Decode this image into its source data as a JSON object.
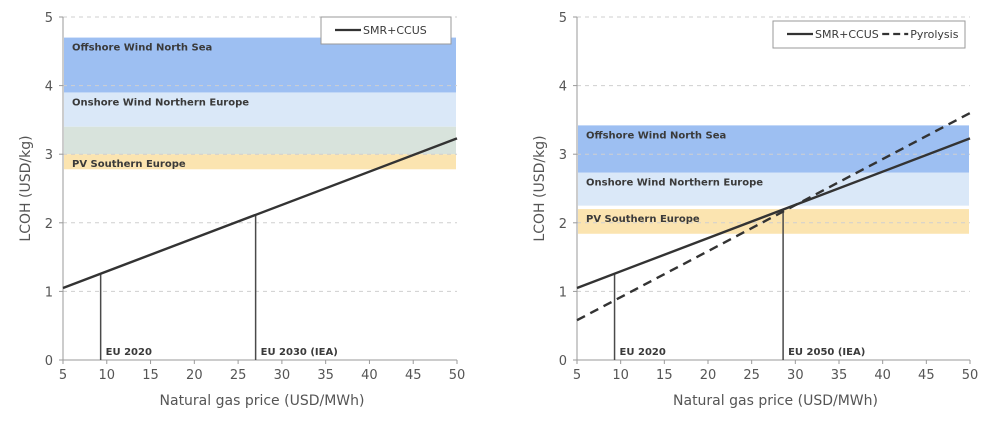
{
  "chart_data": [
    {
      "type": "line",
      "x_axis": {
        "label": "Natural gas price (USD/MWh)",
        "range": [
          5,
          50
        ],
        "ticks": [
          5,
          10,
          15,
          20,
          25,
          30,
          35,
          40,
          45,
          50
        ]
      },
      "y_axis": {
        "label": "LCOH (USD/kg)",
        "range": [
          0,
          5
        ],
        "ticks": [
          0,
          1,
          2,
          3,
          4,
          5
        ]
      },
      "grid": "horizontal dashed",
      "legend_placement": "top-right",
      "series": [
        {
          "name": "SMR+CCUS",
          "style": "solid",
          "color": "#333333",
          "points": [
            [
              5,
              1.05
            ],
            [
              50,
              3.23
            ]
          ]
        }
      ],
      "bands": [
        {
          "label": "Offshore Wind North Sea",
          "y_range": [
            3.9,
            4.7
          ],
          "color": "#9dbff2"
        },
        {
          "label": "Onshore Wind Northern Europe",
          "y_range": [
            3.4,
            3.9
          ],
          "color": "#dae8f8"
        },
        {
          "label": "",
          "y_range": [
            3.0,
            3.4
          ],
          "color": "#d8e3dc"
        },
        {
          "label": "PV Southern Europe",
          "y_range": [
            2.78,
            3.0
          ],
          "color": "#fbe4b0"
        }
      ],
      "markers": [
        {
          "label": "EU 2020",
          "x": 9.3,
          "y": 1.26
        },
        {
          "label": "EU 2030 (IEA)",
          "x": 27,
          "y": 2.12
        }
      ]
    },
    {
      "type": "line",
      "x_axis": {
        "label": "Natural gas price (USD/MWh)",
        "range": [
          5,
          50
        ],
        "ticks": [
          5,
          10,
          15,
          20,
          25,
          30,
          35,
          40,
          45,
          50
        ]
      },
      "y_axis": {
        "label": "LCOH (USD/kg)",
        "range": [
          0,
          5
        ],
        "ticks": [
          0,
          1,
          2,
          3,
          4,
          5
        ]
      },
      "grid": "horizontal dashed",
      "legend_placement": "top-right",
      "series": [
        {
          "name": "SMR+CCUS",
          "style": "solid",
          "color": "#333333",
          "points": [
            [
              5,
              1.05
            ],
            [
              50,
              3.23
            ]
          ]
        },
        {
          "name": "Pyrolysis",
          "style": "dashed",
          "color": "#333333",
          "points": [
            [
              5,
              0.58
            ],
            [
              50,
              3.6
            ]
          ]
        }
      ],
      "bands": [
        {
          "label": "Offshore Wind North Sea",
          "y_range": [
            2.73,
            3.42
          ],
          "color": "#9dbff2"
        },
        {
          "label": "Onshore Wind Northern Europe",
          "y_range": [
            2.25,
            2.73
          ],
          "color": "#dae8f8"
        },
        {
          "label": "PV Southern Europe",
          "y_range": [
            1.84,
            2.2
          ],
          "color": "#fbe4b0"
        }
      ],
      "markers": [
        {
          "label": "EU 2020",
          "x": 9.3,
          "y": 1.26
        },
        {
          "label": "EU 2050 (IEA)",
          "x": 28.6,
          "y": 2.2
        }
      ]
    }
  ]
}
